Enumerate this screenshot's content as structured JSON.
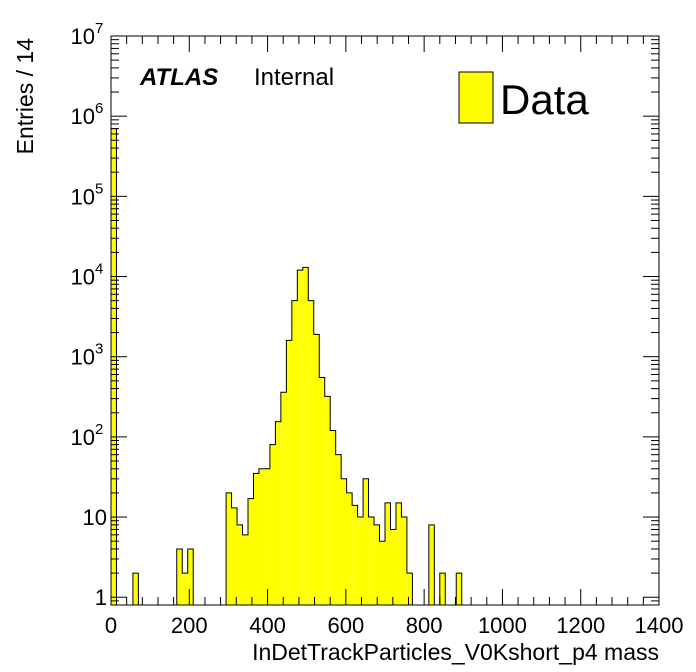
{
  "chart_data": {
    "type": "bar",
    "title": "",
    "xlabel": "InDetTrackParticles_V0Kshort_p4 mass",
    "ylabel": "Entries / 14",
    "xlim": [
      0,
      1400
    ],
    "ylim": [
      0.8,
      10000000
    ],
    "yscale": "log",
    "bin_width": 14,
    "x_ticks": [
      0,
      200,
      400,
      600,
      800,
      1000,
      1200,
      1400
    ],
    "y_ticks": [
      {
        "value": 1,
        "base": "1",
        "exp": ""
      },
      {
        "value": 10,
        "base": "10",
        "exp": ""
      },
      {
        "value": 100,
        "base": "10",
        "exp": "2"
      },
      {
        "value": 1000,
        "base": "10",
        "exp": "3"
      },
      {
        "value": 10000,
        "base": "10",
        "exp": "4"
      },
      {
        "value": 100000,
        "base": "10",
        "exp": "5"
      },
      {
        "value": 1000000,
        "base": "10",
        "exp": "6"
      },
      {
        "value": 10000000,
        "base": "10",
        "exp": "7"
      }
    ],
    "bin_edges": [
      0,
      14,
      56,
      70,
      168,
      182,
      196,
      210,
      294,
      308,
      322,
      336,
      350,
      364,
      378,
      392,
      406,
      420,
      434,
      448,
      462,
      476,
      490,
      504,
      518,
      532,
      546,
      560,
      574,
      588,
      602,
      616,
      630,
      644,
      658,
      672,
      686,
      700,
      714,
      728,
      742,
      756,
      770,
      812,
      826,
      840,
      854,
      882,
      896,
      910
    ],
    "values": [
      700000,
      0,
      2,
      0,
      4,
      2,
      4,
      0,
      20,
      13,
      8,
      6,
      17,
      35,
      40,
      40,
      80,
      155,
      360,
      1600,
      5000,
      12000,
      13000,
      5000,
      1900,
      550,
      320,
      120,
      60,
      30,
      20,
      14,
      10,
      30,
      10,
      8,
      5,
      15,
      7,
      15,
      10,
      2,
      0,
      8,
      0,
      2,
      0,
      2,
      0
    ],
    "series": [
      {
        "name": "Data",
        "color": "#ffff00"
      }
    ],
    "legend_position": "top-right",
    "annotations": {
      "atlas": "ATLAS",
      "status": "Internal"
    },
    "grid": false
  }
}
